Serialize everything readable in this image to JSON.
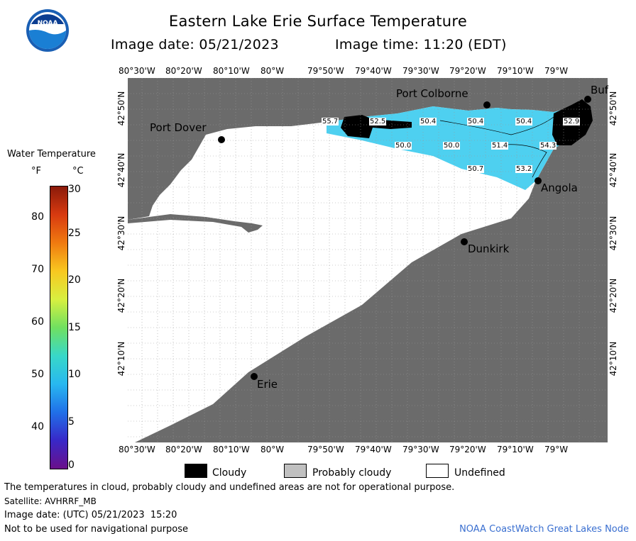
{
  "header": {
    "title": "Eastern Lake Erie Surface Temperature",
    "image_date": "Image date: 05/21/2023",
    "image_time": "Image time: 11:20 (EDT)"
  },
  "logo": {
    "text": "NOAA"
  },
  "scale": {
    "title": "Water Temperature",
    "unit_f": "°F",
    "unit_c": "°C",
    "f_ticks": [
      "80",
      "70",
      "60",
      "50",
      "40"
    ],
    "c_ticks": [
      "30",
      "25",
      "20",
      "15",
      "10",
      "5",
      "0"
    ]
  },
  "axes": {
    "lon_top": [
      "80°30'W",
      "80°20'W",
      "80°10'W",
      "80°W",
      "79°50'W",
      "79°40'W",
      "79°30'W",
      "79°20'W",
      "79°10'W",
      "79°W"
    ],
    "lon_bottom": [
      "80°30'W",
      "80°20'W",
      "80°10'W",
      "80°W",
      "79°50'W",
      "79°40'W",
      "79°30'W",
      "79°20'W",
      "79°10'W",
      "79°W"
    ],
    "lat_left": [
      "42°50'N",
      "42°40'N",
      "42°30'N",
      "42°20'N",
      "42°10'N"
    ],
    "lat_right": [
      "42°50'N",
      "42°40'N",
      "42°30'N",
      "42°20'N",
      "42°10'N"
    ]
  },
  "places": {
    "port_dover": "Port Dover",
    "port_colborne": "Port Colborne",
    "buffalo": "Buf",
    "angola": "Angola",
    "dunkirk": "Dunkirk",
    "erie": "Erie"
  },
  "temps": [
    "55.7",
    "52.5",
    "50.4",
    "50.4",
    "50.4",
    "52.9",
    "50.0",
    "50.0",
    "51.4",
    "54.3",
    "50.7",
    "53.2"
  ],
  "legend": {
    "cloudy": "Cloudy",
    "probably_cloudy": "Probably cloudy",
    "undefined": "Undefined",
    "colors": {
      "cloudy": "#000000",
      "probably_cloudy": "#c0c0c0",
      "undefined": "#ffffff"
    }
  },
  "notes": {
    "disclaimer": "The temperatures in cloud, probably cloudy and undefined areas are not for operational purpose.",
    "satellite": "Satellite: AVHRRF_MB",
    "utc_date": "Image date: (UTC) 05/21/2023  15:20",
    "navigation": "Not to be used for navigational purpose",
    "credit": "NOAA CoastWatch Great Lakes Node"
  },
  "colors": {
    "land": "#6b6b6b",
    "water_temp": "#4ed0f0",
    "credit": "#3a6fd0"
  }
}
